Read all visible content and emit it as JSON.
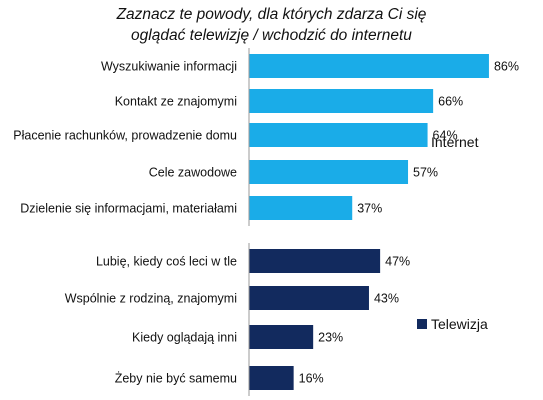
{
  "chart_data": {
    "type": "bar",
    "orientation": "horizontal",
    "title_line1": "Zaznacz te powody, dla których zdarza Ci się",
    "title_line2": "oglądać telewizję / wchodzić do internetu",
    "xlim": [
      0,
      100
    ],
    "grid": false,
    "legend_position": "right",
    "series": [
      {
        "name": "Internet",
        "color": "#1aace8",
        "categories": [
          "Wyszukiwanie informacji",
          "Kontakt ze znajomymi",
          "Płacenie rachunków, prowadzenie domu",
          "Cele zawodowe",
          "Dzielenie się informacjami, materiałami"
        ],
        "values": [
          86,
          66,
          64,
          57,
          37
        ],
        "labels": [
          "86%",
          "66%",
          "64%",
          "57%",
          "37%"
        ]
      },
      {
        "name": "Telewizja",
        "color": "#122a5e",
        "categories": [
          "Lubię, kiedy coś leci w tle",
          "Wspólnie z rodziną, znajomymi",
          "Kiedy oglądają inni",
          "Żeby nie być samemu"
        ],
        "values": [
          47,
          43,
          23,
          16
        ],
        "labels": [
          "47%",
          "43%",
          "23%",
          "16%"
        ]
      }
    ]
  }
}
